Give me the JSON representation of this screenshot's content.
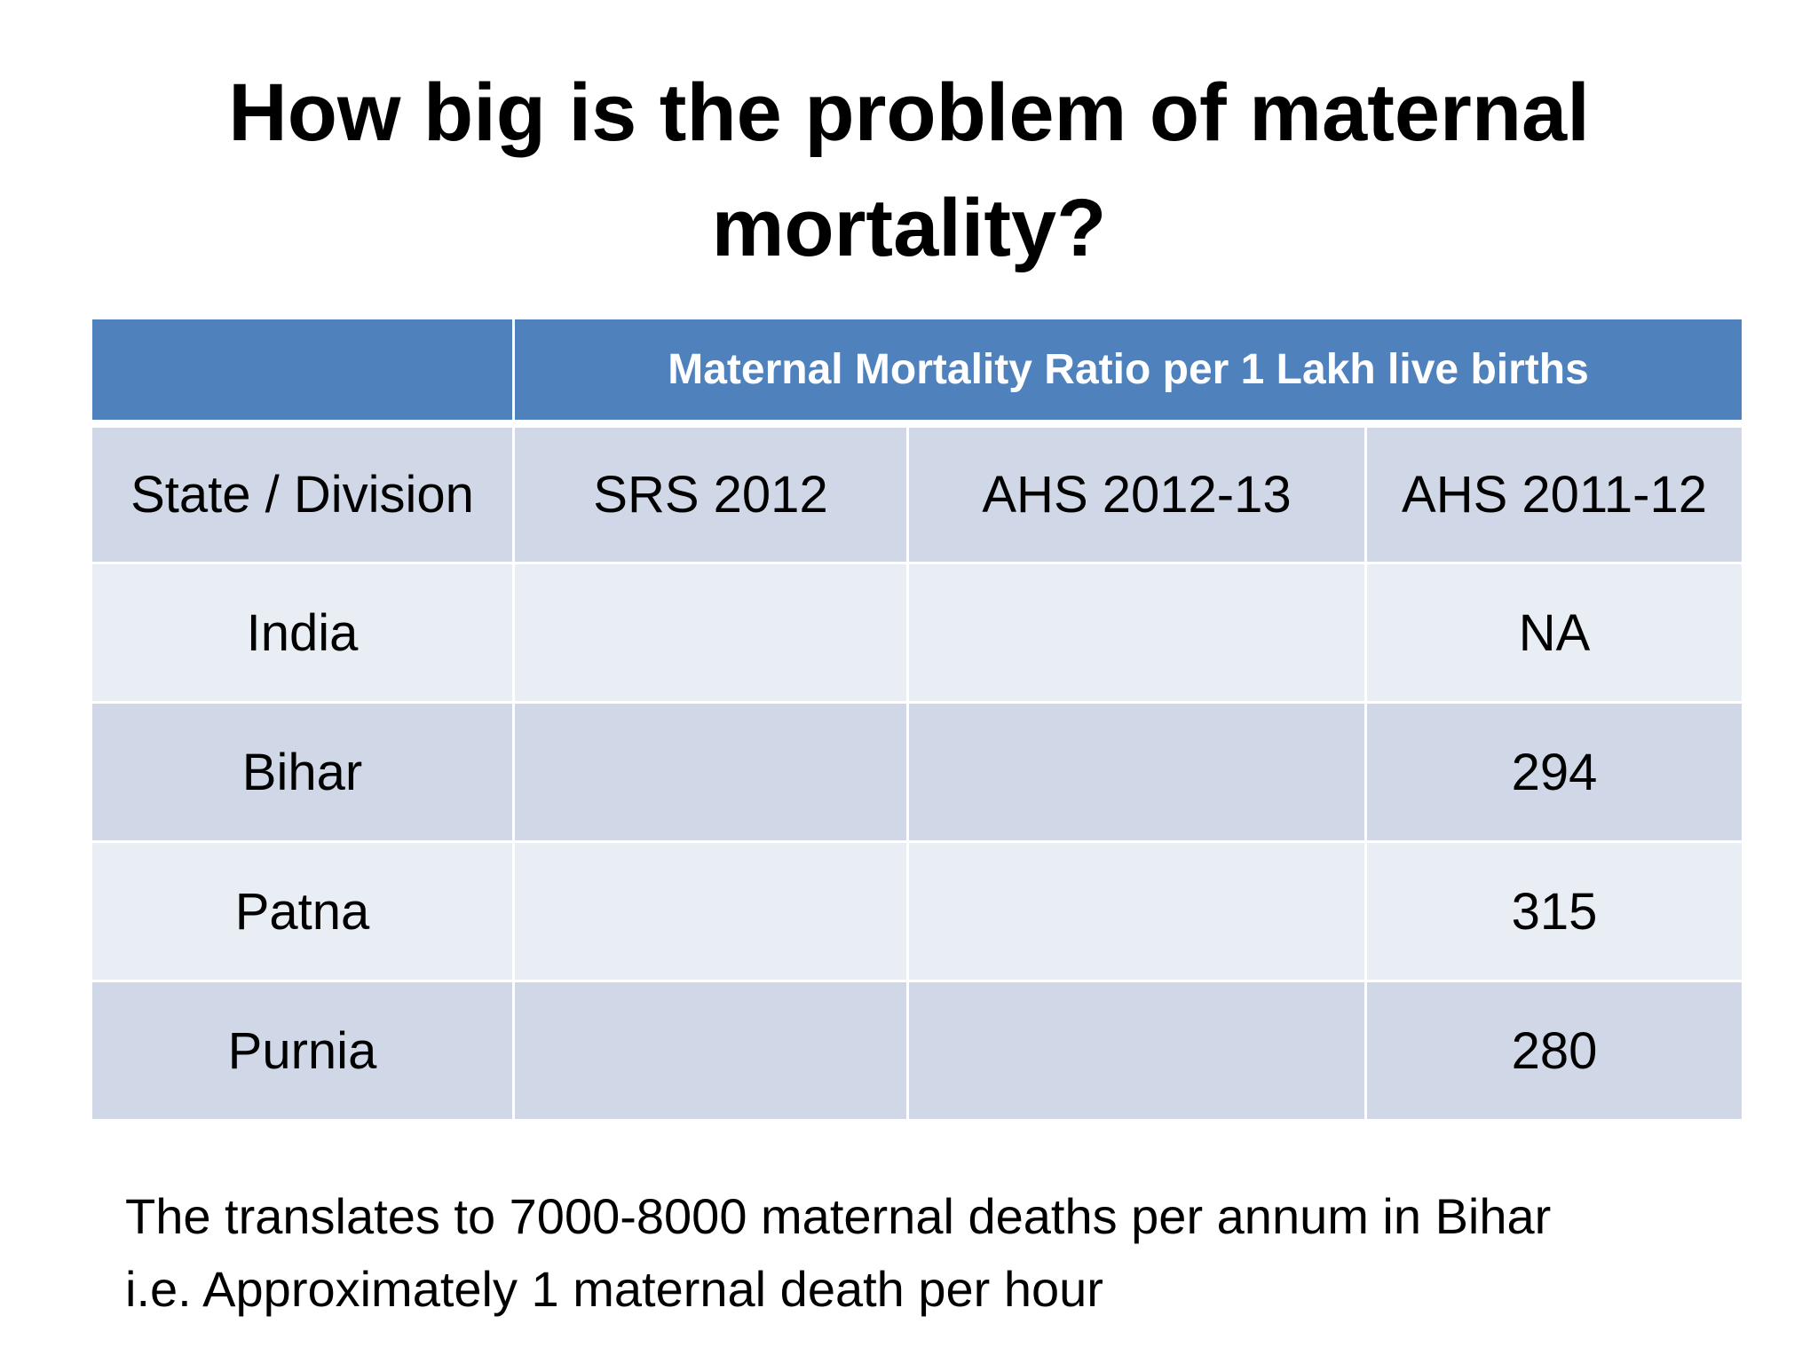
{
  "title": "How big is the problem of maternal mortality?",
  "table": {
    "header": "Maternal Mortality Ratio per 1 Lakh live births",
    "columns": [
      "State / Division",
      "SRS 2012",
      "AHS 2012-13",
      "AHS 2011-12"
    ],
    "rows": [
      [
        "India",
        null,
        null,
        "NA"
      ],
      [
        "Bihar",
        null,
        null,
        294
      ],
      [
        "Patna",
        null,
        null,
        315
      ],
      [
        "Purnia",
        null,
        null,
        280
      ]
    ]
  },
  "footer": [
    "The translates to 7000-8000 maternal deaths per annum in Bihar",
    "i.e. Approximately 1 maternal death per hour"
  ]
}
